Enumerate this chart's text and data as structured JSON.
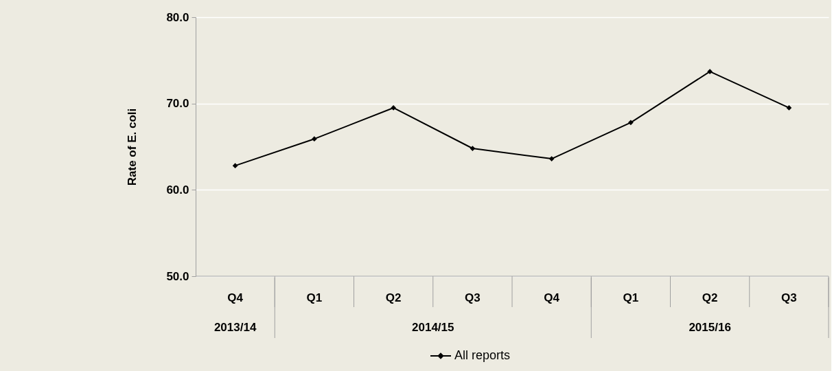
{
  "chart_data": {
    "type": "line",
    "ylabel": "Rate of E. coli",
    "categories": [
      "Q4",
      "Q1",
      "Q2",
      "Q3",
      "Q4",
      "Q1",
      "Q2",
      "Q3"
    ],
    "annotations": [
      "2013/14",
      "2014/15",
      "2015/16"
    ],
    "series": [
      {
        "name": "All reports",
        "color": "#000000",
        "values": [
          62.8,
          65.9,
          69.5,
          64.8,
          63.6,
          67.8,
          73.7,
          69.5
        ]
      }
    ],
    "ylim": [
      50,
      80
    ],
    "yticks": [
      {
        "value": 50,
        "label": "50.0"
      },
      {
        "value": 60,
        "label": "60.0"
      },
      {
        "value": 70,
        "label": "70.0"
      },
      {
        "value": 80,
        "label": "80.0"
      }
    ],
    "grid": "y",
    "legend": "bottom",
    "marker": "diamond",
    "line_style": "solid"
  }
}
